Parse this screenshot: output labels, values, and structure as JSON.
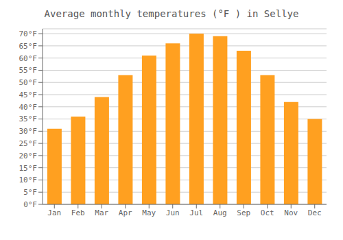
{
  "chart_data": {
    "type": "bar",
    "title": "Average monthly temperatures (°F ) in Sellye",
    "categories": [
      "Jan",
      "Feb",
      "Mar",
      "Apr",
      "May",
      "Jun",
      "Jul",
      "Aug",
      "Sep",
      "Oct",
      "Nov",
      "Dec"
    ],
    "values": [
      31,
      36,
      44,
      53,
      61,
      66,
      70,
      69,
      63,
      53,
      42,
      35
    ],
    "color": "#FFA020",
    "ylim": [
      0,
      72
    ],
    "yticks": [
      {
        "value": 0,
        "label": "0°F"
      },
      {
        "value": 5,
        "label": "5°F"
      },
      {
        "value": 10,
        "label": "10°F"
      },
      {
        "value": 15,
        "label": "15°F"
      },
      {
        "value": 20,
        "label": "20°F"
      },
      {
        "value": 25,
        "label": "25°F"
      },
      {
        "value": 30,
        "label": "30°F"
      },
      {
        "value": 35,
        "label": "35°F"
      },
      {
        "value": 40,
        "label": "40°F"
      },
      {
        "value": 45,
        "label": "45°F"
      },
      {
        "value": 50,
        "label": "50°F"
      },
      {
        "value": 55,
        "label": "55°F"
      },
      {
        "value": 60,
        "label": "60°F"
      },
      {
        "value": 65,
        "label": "65°F"
      },
      {
        "value": 70,
        "label": "70°F"
      }
    ],
    "grid": true
  }
}
